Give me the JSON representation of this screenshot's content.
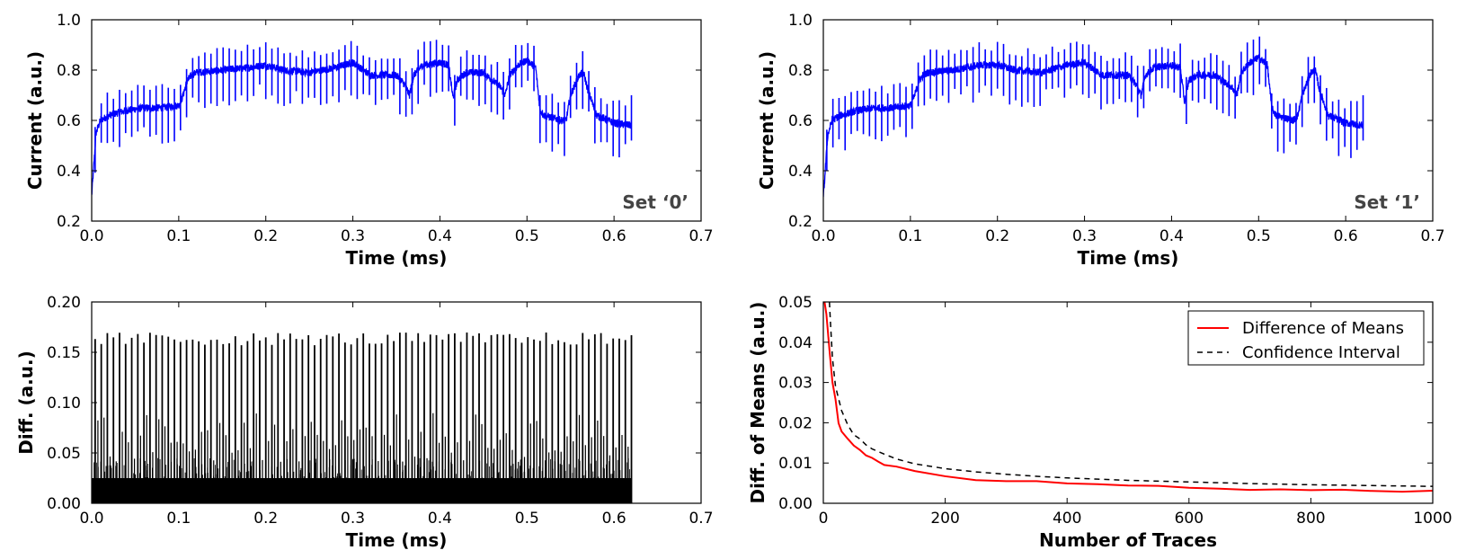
{
  "chart_data": [
    {
      "id": "p1",
      "type": "line",
      "annotation": "Set ‘0’",
      "xlabel": "Time (ms)",
      "ylabel": "Current (a.u.)",
      "xlim": [
        0.0,
        0.7
      ],
      "ylim": [
        0.2,
        1.0
      ],
      "xticks": [
        "0.0",
        "0.1",
        "0.2",
        "0.3",
        "0.4",
        "0.5",
        "0.6",
        "0.7"
      ],
      "yticks": [
        "0.2",
        "0.4",
        "0.6",
        "0.8",
        "1.0"
      ],
      "color": "#0000ff",
      "x": [
        0.0,
        0.005,
        0.01,
        0.02,
        0.04,
        0.06,
        0.08,
        0.1,
        0.105,
        0.11,
        0.115,
        0.12,
        0.15,
        0.18,
        0.2,
        0.22,
        0.25,
        0.28,
        0.3,
        0.32,
        0.35,
        0.36,
        0.365,
        0.37,
        0.38,
        0.4,
        0.41,
        0.415,
        0.42,
        0.43,
        0.45,
        0.47,
        0.475,
        0.48,
        0.49,
        0.5,
        0.51,
        0.515,
        0.52,
        0.54,
        0.545,
        0.55,
        0.56,
        0.565,
        0.57,
        0.58,
        0.6,
        0.62
      ],
      "y": [
        0.3,
        0.55,
        0.6,
        0.62,
        0.64,
        0.65,
        0.65,
        0.66,
        0.7,
        0.76,
        0.78,
        0.79,
        0.8,
        0.81,
        0.82,
        0.8,
        0.79,
        0.81,
        0.83,
        0.78,
        0.78,
        0.74,
        0.7,
        0.78,
        0.82,
        0.83,
        0.82,
        0.69,
        0.76,
        0.79,
        0.79,
        0.73,
        0.7,
        0.78,
        0.82,
        0.84,
        0.81,
        0.64,
        0.62,
        0.6,
        0.6,
        0.7,
        0.78,
        0.79,
        0.72,
        0.62,
        0.59,
        0.58
      ],
      "spike_interval_ms": 0.007,
      "spike_up": 0.08,
      "spike_down": 0.12
    },
    {
      "id": "p2",
      "type": "line",
      "annotation": "Set ‘1’",
      "xlabel": "Time (ms)",
      "ylabel": "Current (a.u.)",
      "xlim": [
        0.0,
        0.7
      ],
      "ylim": [
        0.2,
        1.0
      ],
      "xticks": [
        "0.0",
        "0.1",
        "0.2",
        "0.3",
        "0.4",
        "0.5",
        "0.6",
        "0.7"
      ],
      "yticks": [
        "0.2",
        "0.4",
        "0.6",
        "0.8",
        "1.0"
      ],
      "color": "#0000ff",
      "x": [
        0.0,
        0.005,
        0.01,
        0.02,
        0.04,
        0.06,
        0.08,
        0.1,
        0.105,
        0.11,
        0.115,
        0.12,
        0.15,
        0.18,
        0.2,
        0.22,
        0.25,
        0.28,
        0.3,
        0.32,
        0.35,
        0.36,
        0.365,
        0.37,
        0.38,
        0.4,
        0.41,
        0.415,
        0.42,
        0.43,
        0.45,
        0.47,
        0.475,
        0.48,
        0.49,
        0.5,
        0.51,
        0.515,
        0.52,
        0.54,
        0.545,
        0.55,
        0.56,
        0.565,
        0.57,
        0.58,
        0.6,
        0.62
      ],
      "y": [
        0.29,
        0.54,
        0.6,
        0.62,
        0.64,
        0.65,
        0.65,
        0.66,
        0.7,
        0.76,
        0.78,
        0.79,
        0.8,
        0.82,
        0.82,
        0.8,
        0.79,
        0.82,
        0.83,
        0.78,
        0.78,
        0.74,
        0.7,
        0.78,
        0.81,
        0.82,
        0.81,
        0.67,
        0.76,
        0.78,
        0.78,
        0.73,
        0.7,
        0.79,
        0.83,
        0.85,
        0.82,
        0.65,
        0.62,
        0.6,
        0.62,
        0.7,
        0.79,
        0.8,
        0.72,
        0.62,
        0.59,
        0.58
      ],
      "spike_interval_ms": 0.007,
      "spike_up": 0.08,
      "spike_down": 0.12
    },
    {
      "id": "p3",
      "type": "line",
      "xlabel": "Time (ms)",
      "ylabel": "Diff. (a.u.)",
      "xlim": [
        0.0,
        0.7
      ],
      "ylim": [
        0.0,
        0.2
      ],
      "xticks": [
        "0.0",
        "0.1",
        "0.2",
        "0.3",
        "0.4",
        "0.5",
        "0.6",
        "0.7"
      ],
      "yticks": [
        "0.00",
        "0.05",
        "0.10",
        "0.15",
        "0.20"
      ],
      "color": "#000000",
      "x_end": 0.62,
      "noise_level": 0.025,
      "spike_interval_ms": 0.007,
      "spike_height": 0.165
    },
    {
      "id": "p4",
      "type": "line",
      "xlabel": "Number of Traces",
      "ylabel": "Diff. of Means (a.u.)",
      "xlim": [
        0,
        1000
      ],
      "ylim": [
        0.0,
        0.05
      ],
      "xticks": [
        "0",
        "200",
        "400",
        "600",
        "800",
        "1000"
      ],
      "yticks": [
        "0.00",
        "0.01",
        "0.02",
        "0.03",
        "0.04",
        "0.05"
      ],
      "legend": "top-right",
      "series": [
        {
          "name": "Difference of Means",
          "color": "#ff0000",
          "style": "solid",
          "x": [
            2,
            5,
            10,
            15,
            20,
            25,
            30,
            40,
            50,
            60,
            70,
            80,
            90,
            100,
            120,
            150,
            200,
            250,
            300,
            350,
            400,
            450,
            500,
            550,
            600,
            650,
            700,
            750,
            800,
            850,
            900,
            950,
            1000
          ],
          "y": [
            0.05,
            0.047,
            0.038,
            0.03,
            0.026,
            0.02,
            0.018,
            0.016,
            0.0145,
            0.013,
            0.012,
            0.0115,
            0.0105,
            0.0098,
            0.009,
            0.0083,
            0.007,
            0.006,
            0.0055,
            0.0052,
            0.005,
            0.0047,
            0.0045,
            0.0041,
            0.0039,
            0.0037,
            0.0035,
            0.0033,
            0.0032,
            0.0031,
            0.0031,
            0.003,
            0.003
          ]
        },
        {
          "name": "Confidence Interval",
          "color": "#000000",
          "style": "dashed",
          "x": [
            10,
            12,
            15,
            20,
            25,
            30,
            40,
            50,
            60,
            70,
            80,
            100,
            120,
            150,
            200,
            250,
            300,
            350,
            400,
            450,
            500,
            600,
            700,
            800,
            900,
            1000
          ],
          "y": [
            0.05,
            0.044,
            0.036,
            0.029,
            0.026,
            0.023,
            0.0195,
            0.017,
            0.016,
            0.0145,
            0.0135,
            0.0122,
            0.011,
            0.0098,
            0.0086,
            0.0078,
            0.0072,
            0.0067,
            0.0063,
            0.006,
            0.0057,
            0.0053,
            0.0049,
            0.0046,
            0.0044,
            0.0042
          ]
        }
      ]
    }
  ]
}
